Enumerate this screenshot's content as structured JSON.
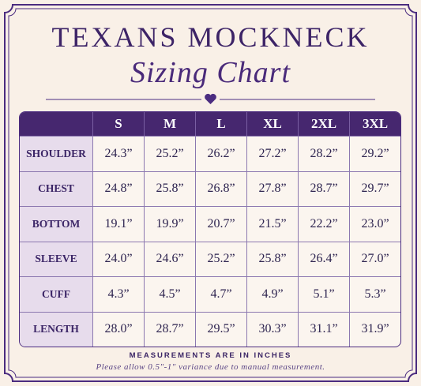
{
  "header": {
    "title": "TEXANS MOCKNECK",
    "subtitle": "Sizing Chart"
  },
  "table": {
    "columns": [
      "S",
      "M",
      "L",
      "XL",
      "2XL",
      "3XL"
    ],
    "rows": [
      [
        "SHOULDER",
        "24.3”",
        "25.2”",
        "26.2”",
        "27.2”",
        "28.2”",
        "29.2”"
      ],
      [
        "CHEST",
        "24.8”",
        "25.8”",
        "26.8”",
        "27.8”",
        "28.7”",
        "29.7”"
      ],
      [
        "BOTTOM",
        "19.1”",
        "19.9”",
        "20.7”",
        "21.5”",
        "22.2”",
        "23.0”"
      ],
      [
        "SLEEVE",
        "24.0”",
        "24.6”",
        "25.2”",
        "25.8”",
        "26.4”",
        "27.0”"
      ],
      [
        "CUFF",
        "4.3”",
        "4.5”",
        "4.7”",
        "4.9”",
        "5.1”",
        "5.3”"
      ],
      [
        "LENGTH",
        "28.0”",
        "28.7”",
        "29.5”",
        "30.3”",
        "31.1”",
        "31.9”"
      ]
    ]
  },
  "footer": {
    "note": "MEASUREMENTS ARE IN INCHES",
    "disclaimer": "Please allow 0.5\"-1\" variance due to manual measurement."
  }
}
